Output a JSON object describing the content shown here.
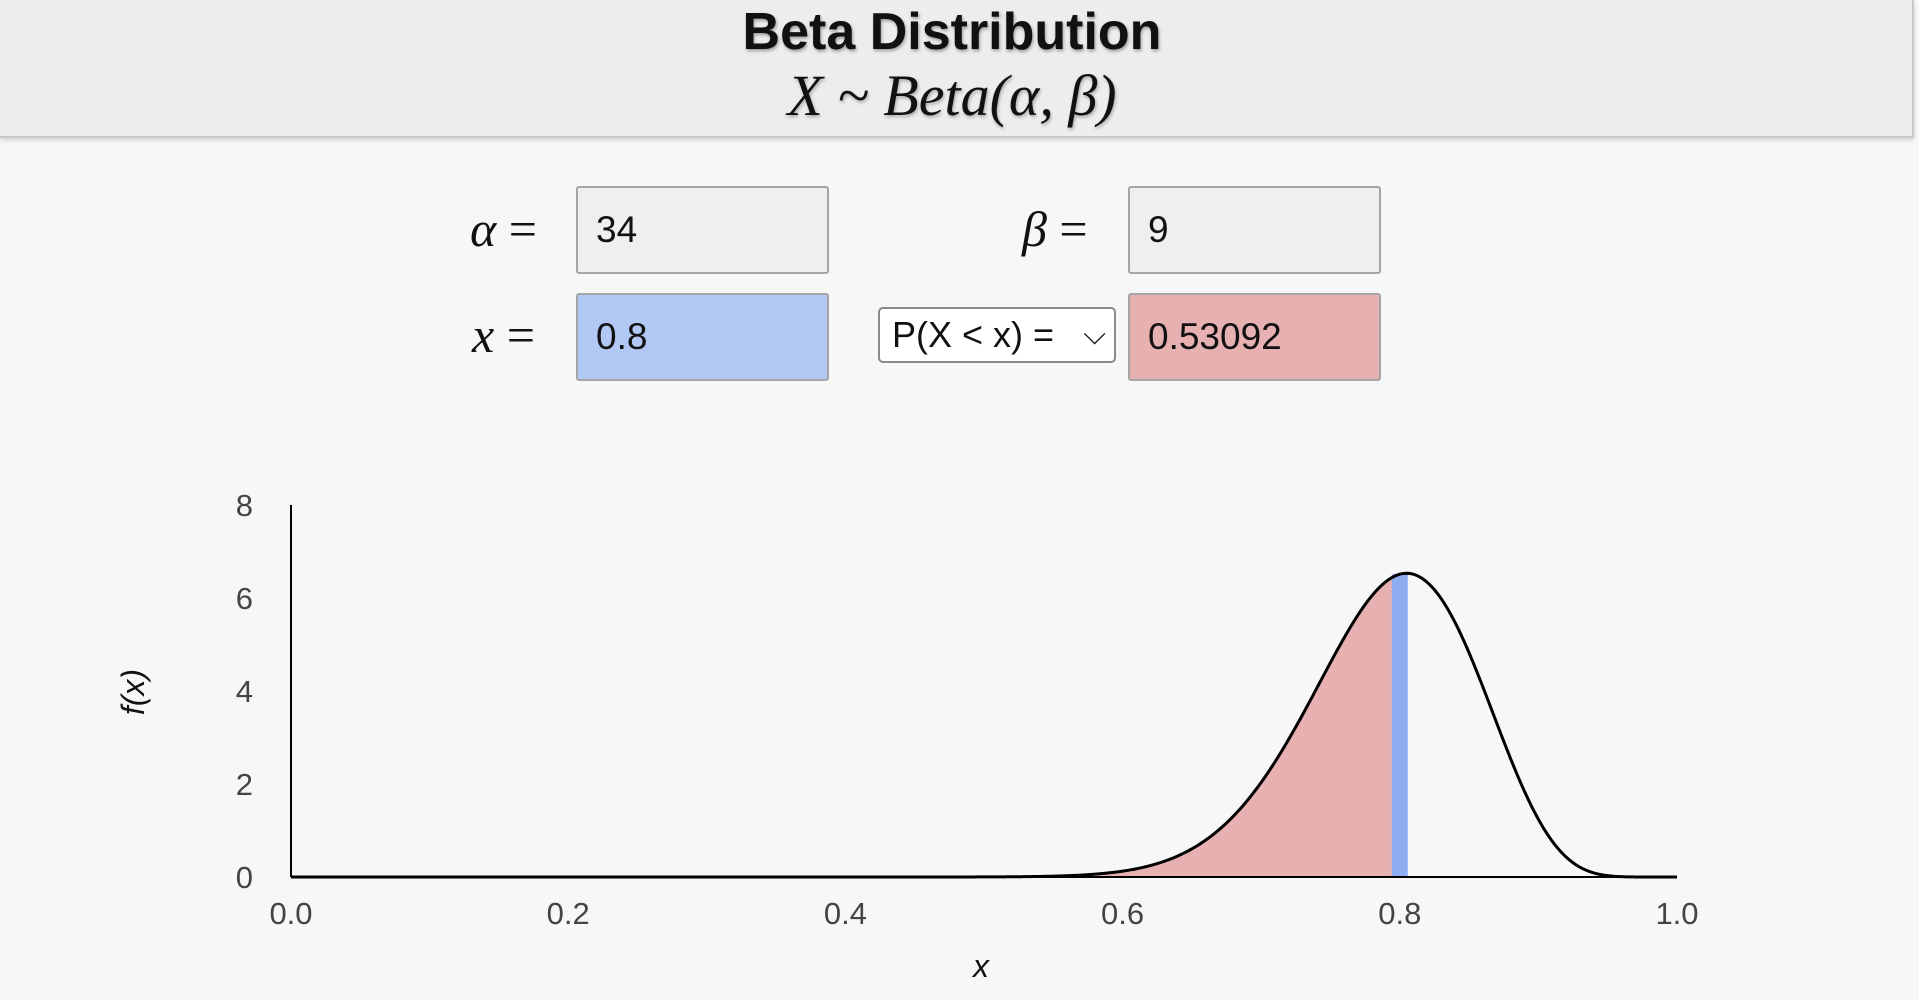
{
  "header": {
    "title": "Beta Distribution",
    "formula": "X ~ Beta(α, β)"
  },
  "params": {
    "alpha_label": "α",
    "alpha_value": "34",
    "beta_label": "β",
    "beta_value": "9",
    "x_label": "x",
    "x_value": "0.8",
    "equals": "=",
    "prob_select": "P(X < x) =",
    "prob_result": "0.53092"
  },
  "colors": {
    "shaded_area": "#e7b1b1",
    "x_marker": "#8eacf0",
    "curve": "#000000"
  },
  "chart_data": {
    "type": "area",
    "distribution": "beta",
    "alpha": 34,
    "beta": 9,
    "x_marker": 0.8,
    "shaded": "x < 0.8",
    "xlim": [
      0,
      1
    ],
    "ylim": [
      0,
      8
    ],
    "xticks": [
      "0.0",
      "0.2",
      "0.4",
      "0.6",
      "0.8",
      "1.0"
    ],
    "yticks": [
      "0",
      "2",
      "4",
      "6",
      "8"
    ],
    "xlabel": "x",
    "ylabel": "f(x)",
    "grid": false
  }
}
